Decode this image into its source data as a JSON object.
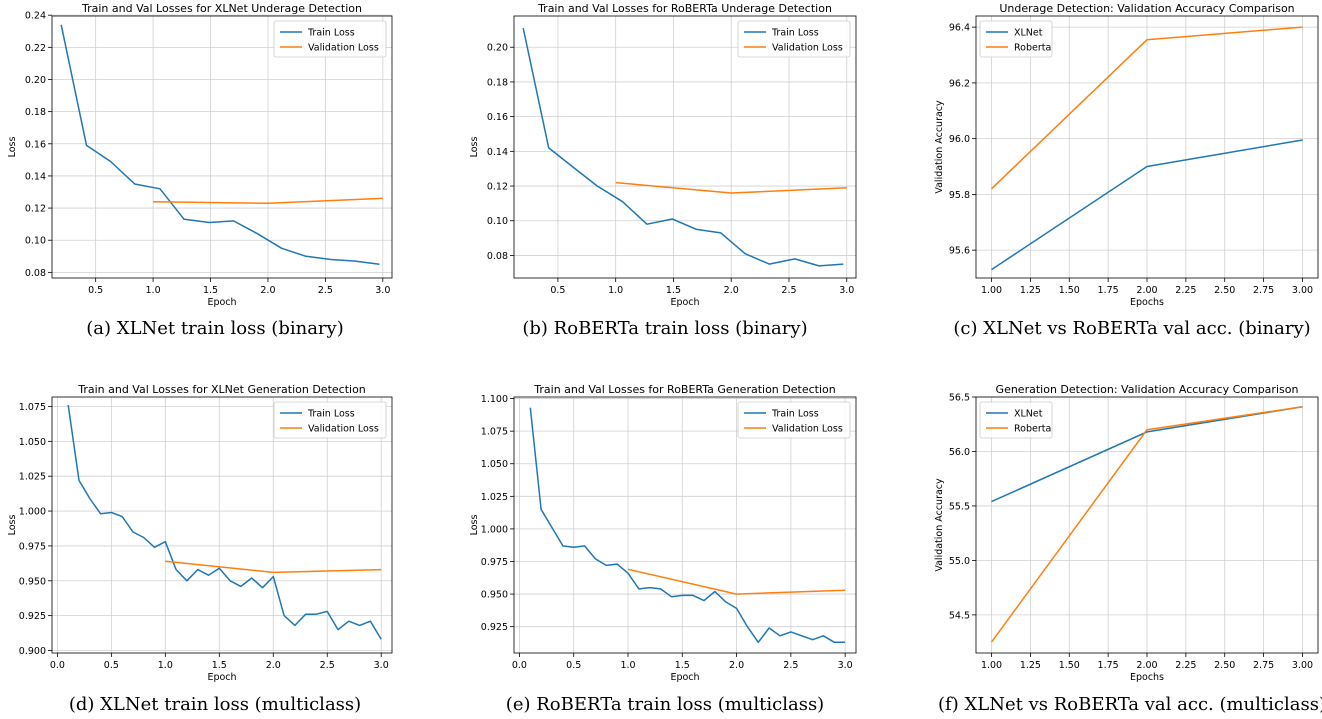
{
  "colors": {
    "series1": "#1f77b4",
    "series2": "#ff7f0e",
    "grid": "#d0d0d0"
  },
  "chart_data": [
    {
      "type": "line",
      "title": "Train and Val Losses for XLNet Underage Detection",
      "xlabel": "Epoch",
      "ylabel": "Loss",
      "xlim": [
        0.12,
        3.08
      ],
      "ylim": [
        0.0765,
        0.2395
      ],
      "xticks": [
        0.5,
        1.0,
        1.5,
        2.0,
        2.5,
        3.0
      ],
      "xtick_labels": [
        "0.5",
        "1.0",
        "1.5",
        "2.0",
        "2.5",
        "3.0"
      ],
      "yticks": [
        0.08,
        0.1,
        0.12,
        0.14,
        0.16,
        0.18,
        0.2,
        0.22,
        0.24
      ],
      "ytick_labels": [
        "0.08",
        "0.10",
        "0.12",
        "0.14",
        "0.16",
        "0.18",
        "0.20",
        "0.22",
        "0.24"
      ],
      "grid": true,
      "legend": "top-right",
      "series": [
        {
          "name": "Train Loss",
          "color": "#1f77b4",
          "x": [
            0.2,
            0.42,
            0.63,
            0.84,
            1.06,
            1.27,
            1.49,
            1.7,
            1.91,
            2.12,
            2.33,
            2.55,
            2.76,
            2.97
          ],
          "y": [
            0.234,
            0.159,
            0.149,
            0.135,
            0.132,
            0.113,
            0.111,
            0.112,
            0.104,
            0.095,
            0.09,
            0.088,
            0.087,
            0.085
          ]
        },
        {
          "name": "Validation Loss",
          "color": "#ff7f0e",
          "x": [
            1.0,
            2.0,
            3.0
          ],
          "y": [
            0.124,
            0.123,
            0.126
          ]
        }
      ],
      "caption": "(a) XLNet train loss (binary)"
    },
    {
      "type": "line",
      "title": "Train and Val Losses for RoBERTa Underage Detection",
      "xlabel": "Epoch",
      "ylabel": "Loss",
      "xlim": [
        0.12,
        3.08
      ],
      "ylim": [
        0.067,
        0.218
      ],
      "xticks": [
        0.5,
        1.0,
        1.5,
        2.0,
        2.5,
        3.0
      ],
      "xtick_labels": [
        "0.5",
        "1.0",
        "1.5",
        "2.0",
        "2.5",
        "3.0"
      ],
      "yticks": [
        0.08,
        0.1,
        0.12,
        0.14,
        0.16,
        0.18,
        0.2
      ],
      "ytick_labels": [
        "0.08",
        "0.10",
        "0.12",
        "0.14",
        "0.16",
        "0.18",
        "0.20"
      ],
      "grid": true,
      "legend": "top-right",
      "series": [
        {
          "name": "Train Loss",
          "color": "#1f77b4",
          "x": [
            0.2,
            0.42,
            0.63,
            0.84,
            1.06,
            1.27,
            1.49,
            1.7,
            1.91,
            2.12,
            2.33,
            2.55,
            2.76,
            2.97
          ],
          "y": [
            0.211,
            0.142,
            0.131,
            0.12,
            0.111,
            0.098,
            0.101,
            0.095,
            0.093,
            0.081,
            0.075,
            0.078,
            0.074,
            0.075
          ]
        },
        {
          "name": "Validation Loss",
          "color": "#ff7f0e",
          "x": [
            1.0,
            2.0,
            3.0
          ],
          "y": [
            0.122,
            0.116,
            0.119
          ]
        }
      ],
      "caption": "(b) RoBERTa train loss (binary)"
    },
    {
      "type": "line",
      "title": "Underage Detection: Validation Accuracy Comparison",
      "xlabel": "Epochs",
      "ylabel": "Validation Accuracy",
      "xlim": [
        0.9,
        3.1
      ],
      "ylim": [
        95.5,
        96.44
      ],
      "xticks": [
        1.0,
        1.25,
        1.5,
        1.75,
        2.0,
        2.25,
        2.5,
        2.75,
        3.0
      ],
      "xtick_labels": [
        "1.00",
        "1.25",
        "1.50",
        "1.75",
        "2.00",
        "2.25",
        "2.50",
        "2.75",
        "3.00"
      ],
      "yticks": [
        95.6,
        95.8,
        96.0,
        96.2,
        96.4
      ],
      "ytick_labels": [
        "95.6",
        "95.8",
        "96.0",
        "96.2",
        "96.4"
      ],
      "grid": true,
      "legend": "top-left",
      "series": [
        {
          "name": "XLNet",
          "color": "#1f77b4",
          "x": [
            1,
            2,
            3
          ],
          "y": [
            95.53,
            95.9,
            95.995
          ]
        },
        {
          "name": "Roberta",
          "color": "#ff7f0e",
          "x": [
            1,
            2,
            3
          ],
          "y": [
            95.82,
            96.355,
            96.4
          ]
        }
      ],
      "caption": "(c) XLNet vs RoBERTa val acc. (binary)"
    },
    {
      "type": "line",
      "title": "Train and Val Losses for XLNet Generation Detection",
      "xlabel": "Epoch",
      "ylabel": "Loss",
      "xlim": [
        -0.05,
        3.1
      ],
      "ylim": [
        0.8982,
        1.0818
      ],
      "xticks": [
        0.0,
        0.5,
        1.0,
        1.5,
        2.0,
        2.5,
        3.0
      ],
      "xtick_labels": [
        "0.0",
        "0.5",
        "1.0",
        "1.5",
        "2.0",
        "2.5",
        "3.0"
      ],
      "yticks": [
        0.9,
        0.925,
        0.95,
        0.975,
        1.0,
        1.025,
        1.05,
        1.075
      ],
      "ytick_labels": [
        "0.900",
        "0.925",
        "0.950",
        "0.975",
        "1.000",
        "1.025",
        "1.050",
        "1.075"
      ],
      "grid": true,
      "legend": "top-right",
      "series": [
        {
          "name": "Train Loss",
          "color": "#1f77b4",
          "x": [
            0.1,
            0.2,
            0.3,
            0.4,
            0.5,
            0.6,
            0.7,
            0.8,
            0.9,
            1.0,
            1.1,
            1.2,
            1.3,
            1.4,
            1.5,
            1.6,
            1.7,
            1.8,
            1.9,
            2.0,
            2.1,
            2.2,
            2.3,
            2.4,
            2.5,
            2.6,
            2.7,
            2.8,
            2.9,
            3.0
          ],
          "y": [
            1.076,
            1.022,
            1.009,
            0.998,
            0.999,
            0.996,
            0.985,
            0.981,
            0.974,
            0.978,
            0.958,
            0.95,
            0.958,
            0.954,
            0.959,
            0.95,
            0.946,
            0.952,
            0.945,
            0.953,
            0.925,
            0.918,
            0.926,
            0.926,
            0.928,
            0.915,
            0.921,
            0.918,
            0.921,
            0.908
          ]
        },
        {
          "name": "Validation Loss",
          "color": "#ff7f0e",
          "x": [
            1.0,
            2.0,
            3.0
          ],
          "y": [
            0.964,
            0.956,
            0.958
          ]
        }
      ],
      "caption": "(d) XLNet train loss (multiclass)"
    },
    {
      "type": "line",
      "title": "Train and Val Losses for RoBERTa Generation Detection",
      "xlabel": "Epoch",
      "ylabel": "Loss",
      "xlim": [
        -0.05,
        3.1
      ],
      "ylim": [
        0.9048,
        1.1012
      ],
      "xticks": [
        0.0,
        0.5,
        1.0,
        1.5,
        2.0,
        2.5,
        3.0
      ],
      "xtick_labels": [
        "0.0",
        "0.5",
        "1.0",
        "1.5",
        "2.0",
        "2.5",
        "3.0"
      ],
      "yticks": [
        0.925,
        0.95,
        0.975,
        1.0,
        1.025,
        1.05,
        1.075,
        1.1
      ],
      "ytick_labels": [
        "0.925",
        "0.950",
        "0.975",
        "1.000",
        "1.025",
        "1.050",
        "1.075",
        "1.100"
      ],
      "grid": true,
      "legend": "top-right",
      "series": [
        {
          "name": "Train Loss",
          "color": "#1f77b4",
          "x": [
            0.1,
            0.2,
            0.3,
            0.4,
            0.5,
            0.6,
            0.7,
            0.8,
            0.9,
            1.0,
            1.1,
            1.2,
            1.3,
            1.4,
            1.5,
            1.6,
            1.7,
            1.8,
            1.9,
            2.0,
            2.1,
            2.2,
            2.3,
            2.4,
            2.5,
            2.6,
            2.7,
            2.8,
            2.9,
            3.0
          ],
          "y": [
            1.093,
            1.015,
            1.001,
            0.987,
            0.986,
            0.987,
            0.977,
            0.972,
            0.973,
            0.966,
            0.954,
            0.955,
            0.954,
            0.948,
            0.949,
            0.949,
            0.945,
            0.952,
            0.944,
            0.939,
            0.925,
            0.913,
            0.924,
            0.918,
            0.921,
            0.918,
            0.915,
            0.918,
            0.913,
            0.913
          ]
        },
        {
          "name": "Validation Loss",
          "color": "#ff7f0e",
          "x": [
            1.0,
            2.0,
            3.0
          ],
          "y": [
            0.969,
            0.95,
            0.953
          ]
        }
      ],
      "caption": "(e) RoBERTa train loss (multiclass)"
    },
    {
      "type": "line",
      "title": "Generation Detection: Validation Accuracy Comparison",
      "xlabel": "Epochs",
      "ylabel": "Validation Accuracy",
      "xlim": [
        0.9,
        3.1
      ],
      "ylim": [
        54.15,
        56.5
      ],
      "xticks": [
        1.0,
        1.25,
        1.5,
        1.75,
        2.0,
        2.25,
        2.5,
        2.75,
        3.0
      ],
      "xtick_labels": [
        "1.00",
        "1.25",
        "1.50",
        "1.75",
        "2.00",
        "2.25",
        "2.50",
        "2.75",
        "3.00"
      ],
      "yticks": [
        54.5,
        55.0,
        55.5,
        56.0,
        56.5
      ],
      "ytick_labels": [
        "54.5",
        "55.0",
        "55.5",
        "56.0",
        "56.5"
      ],
      "grid": true,
      "legend": "top-left",
      "series": [
        {
          "name": "XLNet",
          "color": "#1f77b4",
          "x": [
            1,
            2,
            3
          ],
          "y": [
            55.54,
            56.18,
            56.41
          ]
        },
        {
          "name": "Roberta",
          "color": "#ff7f0e",
          "x": [
            1,
            2,
            3
          ],
          "y": [
            54.25,
            56.2,
            56.41
          ]
        }
      ],
      "caption": "(f) XLNet vs RoBERTa val acc. (multiclass)"
    }
  ]
}
